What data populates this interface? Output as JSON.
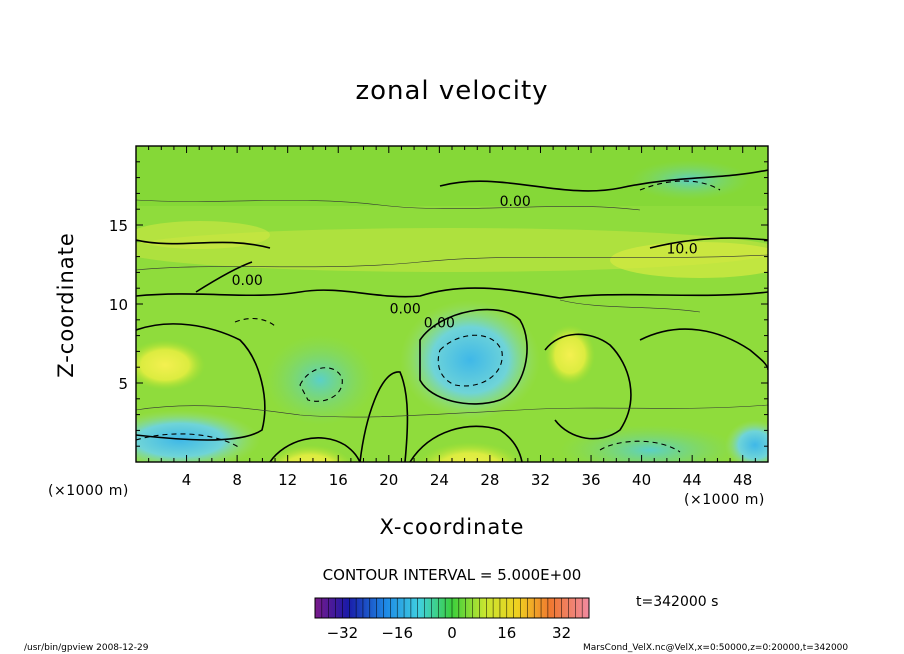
{
  "chart_data": {
    "type": "heatmap",
    "title": "zonal velocity",
    "xlabel": "X-coordinate",
    "ylabel": "Z-coordinate",
    "x_unit_left": "(×1000 m)",
    "x_unit_right": "(×1000 m)",
    "xlim": [
      0,
      50
    ],
    "ylim": [
      0,
      20
    ],
    "x_ticks": [
      4,
      8,
      12,
      16,
      20,
      24,
      28,
      32,
      36,
      40,
      44,
      48
    ],
    "y_ticks": [
      5,
      10,
      15
    ],
    "contour_labels": [
      {
        "text": "0.00",
        "x": 30.0,
        "y": 16.2
      },
      {
        "text": "10.0",
        "x": 43.2,
        "y": 13.2
      },
      {
        "text": "0.00",
        "x": 8.8,
        "y": 11.2
      },
      {
        "text": "0.00",
        "x": 21.3,
        "y": 9.4
      },
      {
        "text": "0.00",
        "x": 24.0,
        "y": 8.5
      }
    ],
    "colorbar": {
      "ticks": [
        -32,
        -16,
        0,
        16,
        32
      ],
      "range": [
        -40,
        40
      ]
    },
    "contour_interval_text": "CONTOUR INTERVAL = 5.000E+00",
    "time_label": "t=342000 s",
    "footer_left": "/usr/bin/gpview  2008-12-29",
    "footer_right": "MarsCond_VelX.nc@VelX,x=0:50000,z=0:20000,t=342000"
  }
}
